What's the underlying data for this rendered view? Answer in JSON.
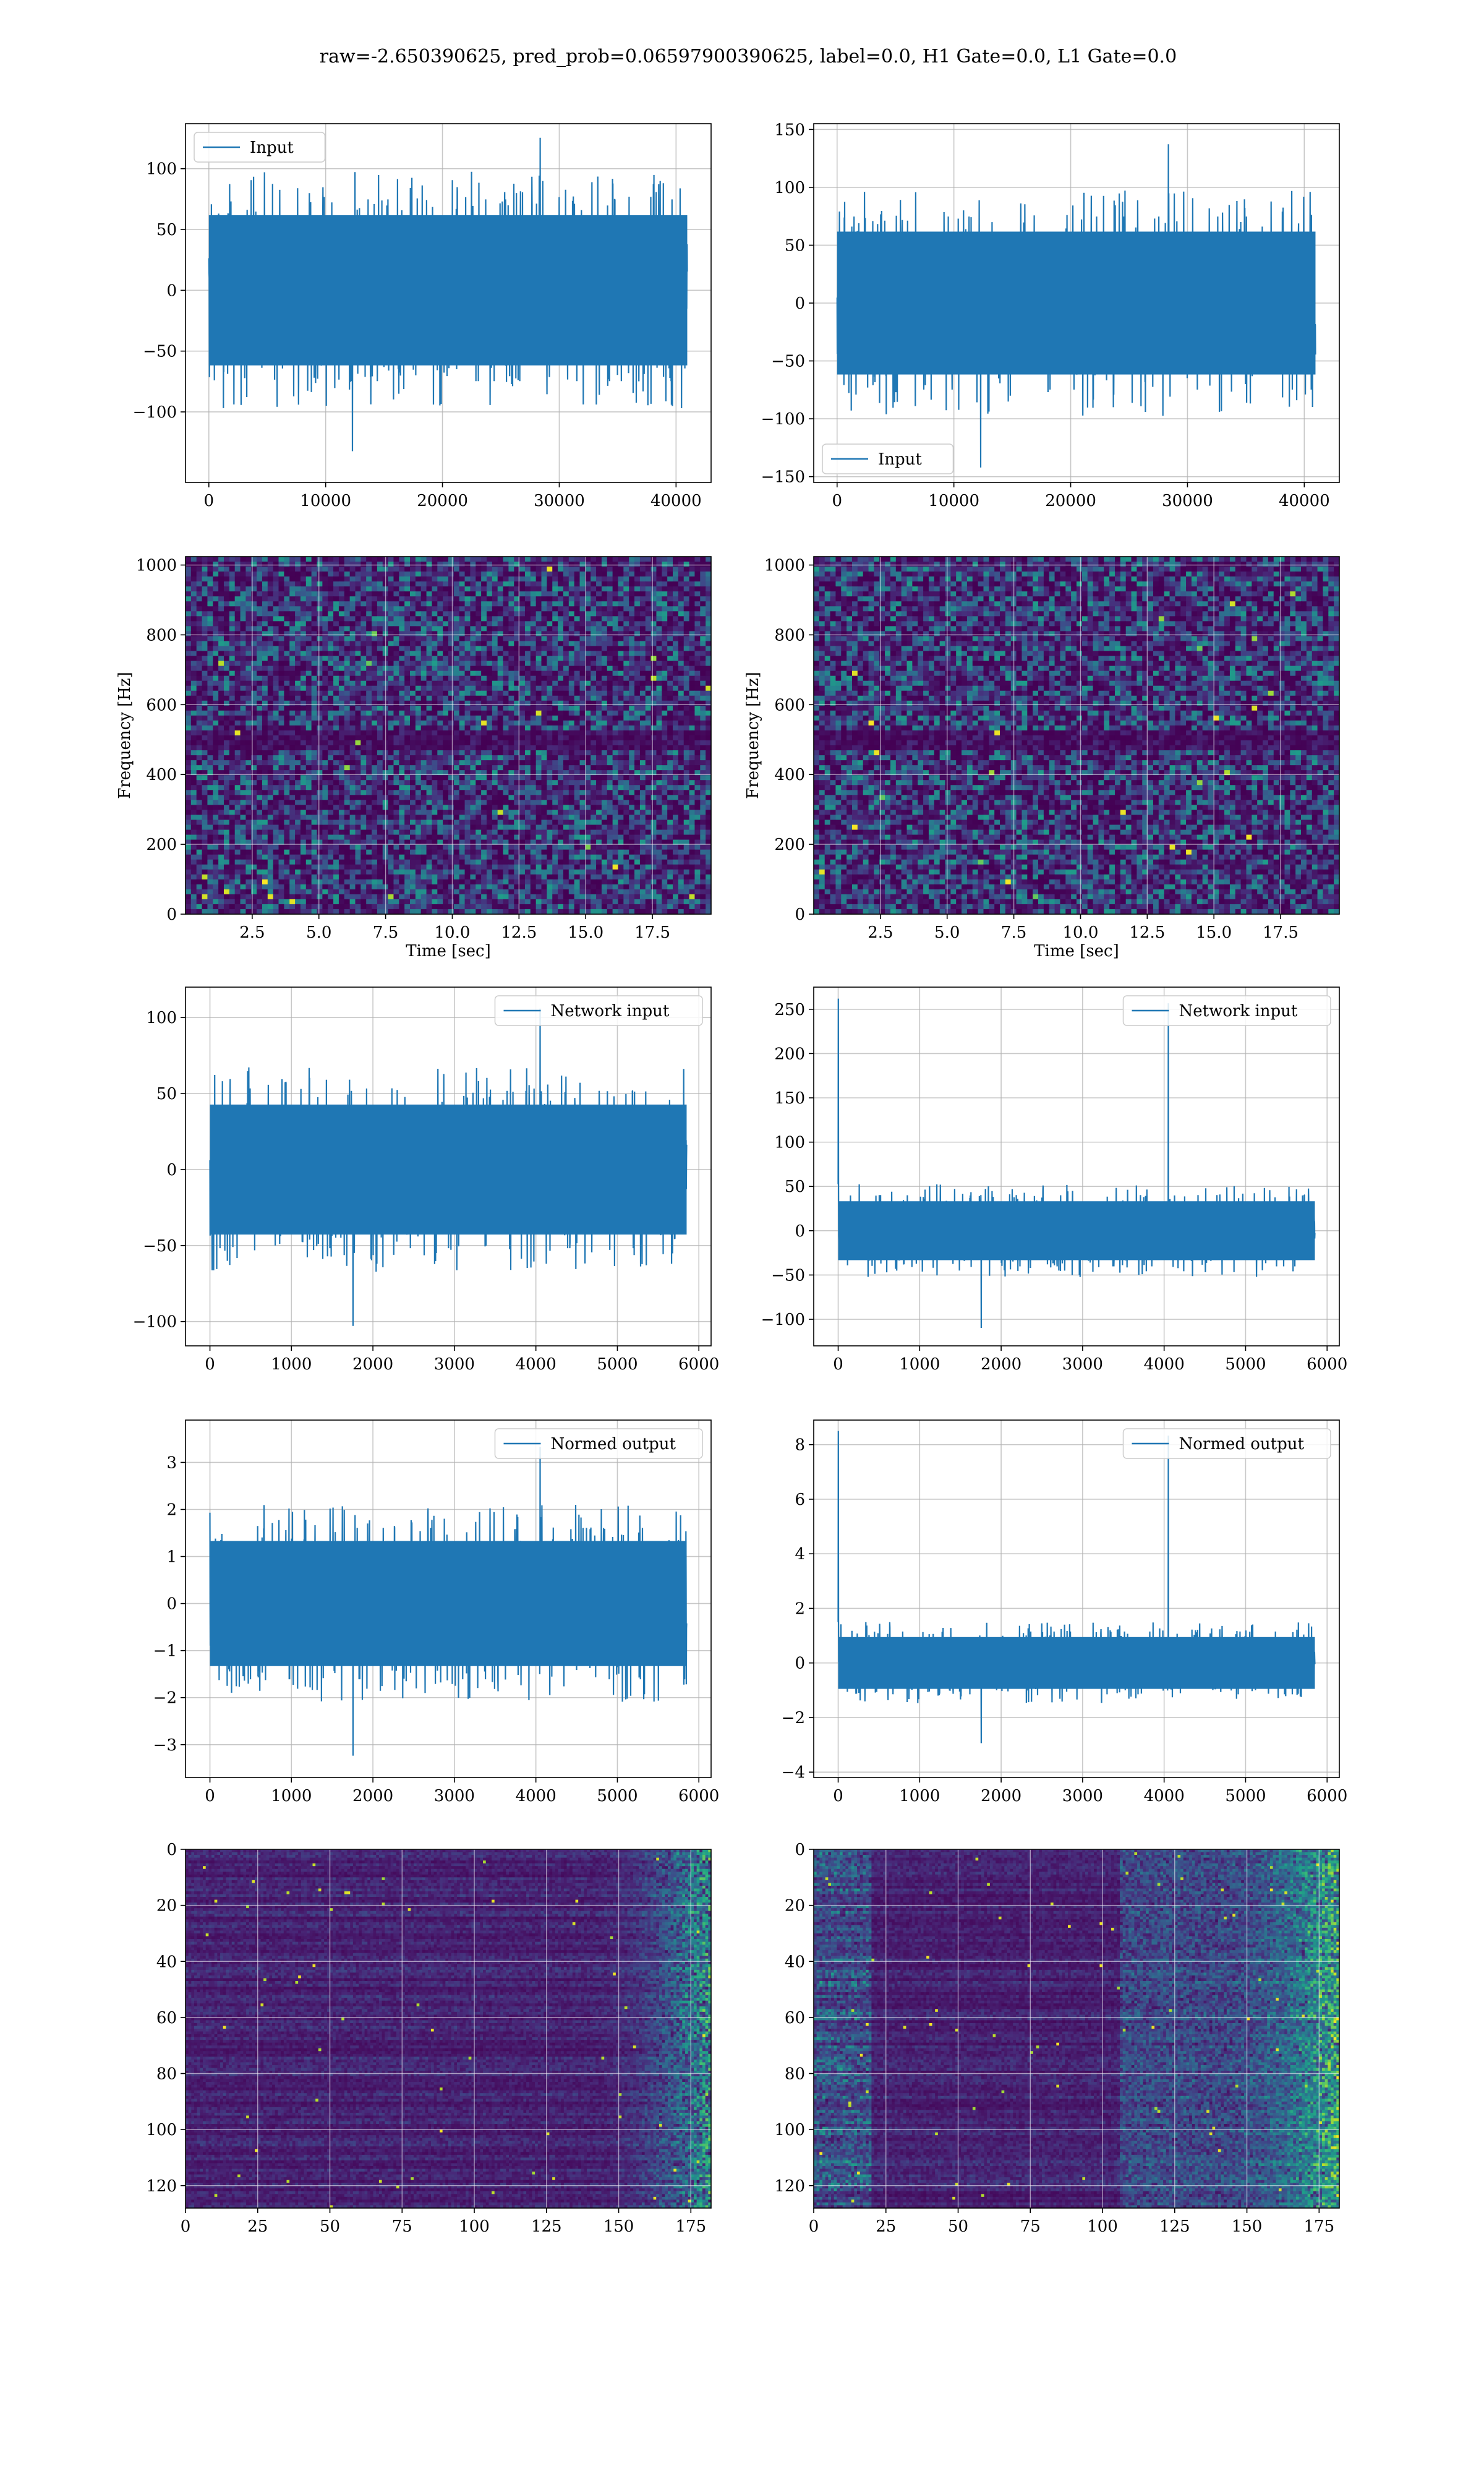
{
  "figure": {
    "suptitle": "raw=-2.650390625, pred_prob=0.06597900390625, label=0.0, H1 Gate=0.0, L1 Gate=0.0"
  },
  "colors": {
    "series": "#1f77b4",
    "grid": "#b0b0b0",
    "viridis_low": "#440154",
    "viridis_mid": "#21918c",
    "viridis_high": "#fde725"
  },
  "chart_data": [
    {
      "id": "r1c1",
      "type": "line",
      "row": 1,
      "col": 1,
      "series": [
        {
          "name": "Input",
          "x_range": [
            0,
            40960
          ],
          "amplitude": 65,
          "spike_max": 128,
          "spike_min": -135
        }
      ],
      "legend": "upper left",
      "xlim": [
        -2000,
        43000
      ],
      "ylim": [
        -158,
        137
      ],
      "xticks": [
        0,
        10000,
        20000,
        30000,
        40000
      ],
      "xtick_labels": [
        "0",
        "10000",
        "20000",
        "30000",
        "40000"
      ],
      "yticks": [
        -100,
        -50,
        0,
        50,
        100
      ],
      "ytick_labels": [
        "−100",
        "−50",
        "0",
        "50",
        "100"
      ],
      "grid": true,
      "xlabel": "",
      "ylabel": ""
    },
    {
      "id": "r1c2",
      "type": "line",
      "row": 1,
      "col": 2,
      "series": [
        {
          "name": "Input",
          "x_range": [
            0,
            40960
          ],
          "amplitude": 65,
          "spike_max": 140,
          "spike_min": -145
        }
      ],
      "legend": "lower left",
      "xlim": [
        -2000,
        43000
      ],
      "ylim": [
        -155,
        155
      ],
      "xticks": [
        0,
        10000,
        20000,
        30000,
        40000
      ],
      "xtick_labels": [
        "0",
        "10000",
        "20000",
        "30000",
        "40000"
      ],
      "yticks": [
        -150,
        -100,
        -50,
        0,
        50,
        100,
        150
      ],
      "ytick_labels": [
        "−150",
        "−100",
        "−50",
        "0",
        "50",
        "100",
        "150"
      ],
      "grid": true,
      "xlabel": "",
      "ylabel": ""
    },
    {
      "id": "r2c1",
      "type": "heatmap",
      "row": 2,
      "col": 1,
      "xlim": [
        0,
        19.7
      ],
      "ylim": [
        0,
        1024
      ],
      "xticks": [
        2.5,
        5.0,
        7.5,
        10.0,
        12.5,
        15.0,
        17.5
      ],
      "xtick_labels": [
        "2.5",
        "5.0",
        "7.5",
        "10.0",
        "12.5",
        "15.0",
        "17.5"
      ],
      "yticks": [
        0,
        200,
        400,
        600,
        800,
        1000
      ],
      "ytick_labels": [
        "0",
        "200",
        "400",
        "600",
        "800",
        "1000"
      ],
      "grid": true,
      "xlabel": "Time [sec]",
      "ylabel": "Frequency [Hz]",
      "colormap": "viridis",
      "dark_band_hz": [
        470,
        530
      ]
    },
    {
      "id": "r2c2",
      "type": "heatmap",
      "row": 2,
      "col": 2,
      "xlim": [
        0,
        19.7
      ],
      "ylim": [
        0,
        1024
      ],
      "xticks": [
        2.5,
        5.0,
        7.5,
        10.0,
        12.5,
        15.0,
        17.5
      ],
      "xtick_labels": [
        "2.5",
        "5.0",
        "7.5",
        "10.0",
        "12.5",
        "15.0",
        "17.5"
      ],
      "yticks": [
        0,
        200,
        400,
        600,
        800,
        1000
      ],
      "ytick_labels": [
        "0",
        "200",
        "400",
        "600",
        "800",
        "1000"
      ],
      "grid": true,
      "xlabel": "Time [sec]",
      "ylabel": "Frequency [Hz]",
      "colormap": "viridis",
      "dark_band_hz": [
        470,
        530
      ]
    },
    {
      "id": "r3c1",
      "type": "line",
      "row": 3,
      "col": 1,
      "series": [
        {
          "name": "Network input",
          "x_range": [
            0,
            5850
          ],
          "amplitude": 45,
          "spike_max": 108,
          "spike_min": -105
        }
      ],
      "legend": "upper right",
      "xlim": [
        -300,
        6150
      ],
      "ylim": [
        -116,
        120
      ],
      "xticks": [
        0,
        1000,
        2000,
        3000,
        4000,
        5000,
        6000
      ],
      "xtick_labels": [
        "0",
        "1000",
        "2000",
        "3000",
        "4000",
        "5000",
        "6000"
      ],
      "yticks": [
        -100,
        -50,
        0,
        50,
        100
      ],
      "ytick_labels": [
        "−100",
        "−50",
        "0",
        "50",
        "100"
      ],
      "grid": true,
      "xlabel": "",
      "ylabel": ""
    },
    {
      "id": "r3c2",
      "type": "line",
      "row": 3,
      "col": 2,
      "series": [
        {
          "name": "Network input",
          "x_range": [
            0,
            5850
          ],
          "amplitude": 35,
          "spike_max": 262,
          "spike_min": -112
        }
      ],
      "legend": "upper right",
      "xlim": [
        -300,
        6150
      ],
      "ylim": [
        -130,
        275
      ],
      "xticks": [
        0,
        1000,
        2000,
        3000,
        4000,
        5000,
        6000
      ],
      "xtick_labels": [
        "0",
        "1000",
        "2000",
        "3000",
        "4000",
        "5000",
        "6000"
      ],
      "yticks": [
        -100,
        -50,
        0,
        50,
        100,
        150,
        200,
        250
      ],
      "ytick_labels": [
        "−100",
        "−50",
        "0",
        "50",
        "100",
        "150",
        "200",
        "250"
      ],
      "grid": true,
      "xlabel": "",
      "ylabel": ""
    },
    {
      "id": "r4c1",
      "type": "line",
      "row": 4,
      "col": 1,
      "series": [
        {
          "name": "Normed output",
          "x_range": [
            0,
            5850
          ],
          "amplitude": 1.4,
          "spike_max": 3.4,
          "spike_min": -3.3
        }
      ],
      "legend": "upper right",
      "xlim": [
        -300,
        6150
      ],
      "ylim": [
        -3.7,
        3.9
      ],
      "xticks": [
        0,
        1000,
        2000,
        3000,
        4000,
        5000,
        6000
      ],
      "xtick_labels": [
        "0",
        "1000",
        "2000",
        "3000",
        "4000",
        "5000",
        "6000"
      ],
      "yticks": [
        -3,
        -2,
        -1,
        0,
        1,
        2,
        3
      ],
      "ytick_labels": [
        "−3",
        "−2",
        "−1",
        "0",
        "1",
        "2",
        "3"
      ],
      "grid": true,
      "xlabel": "",
      "ylabel": ""
    },
    {
      "id": "r4c2",
      "type": "line",
      "row": 4,
      "col": 2,
      "series": [
        {
          "name": "Normed output",
          "x_range": [
            0,
            5850
          ],
          "amplitude": 1.0,
          "spike_max": 8.5,
          "spike_min": -3.0
        }
      ],
      "legend": "upper right",
      "xlim": [
        -300,
        6150
      ],
      "ylim": [
        -4.2,
        8.9
      ],
      "xticks": [
        0,
        1000,
        2000,
        3000,
        4000,
        5000,
        6000
      ],
      "xtick_labels": [
        "0",
        "1000",
        "2000",
        "3000",
        "4000",
        "5000",
        "6000"
      ],
      "yticks": [
        -4,
        -2,
        0,
        2,
        4,
        6,
        8
      ],
      "ytick_labels": [
        "−4",
        "−2",
        "0",
        "2",
        "4",
        "6",
        "8"
      ],
      "grid": true,
      "xlabel": "",
      "ylabel": ""
    },
    {
      "id": "r5c1",
      "type": "heatmap",
      "row": 5,
      "col": 1,
      "xlim": [
        0,
        182
      ],
      "ylim": [
        128,
        0
      ],
      "xticks": [
        0,
        25,
        50,
        75,
        100,
        125,
        150,
        175
      ],
      "xtick_labels": [
        "0",
        "25",
        "50",
        "75",
        "100",
        "125",
        "150",
        "175"
      ],
      "yticks": [
        0,
        20,
        40,
        60,
        80,
        100,
        120
      ],
      "ytick_labels": [
        "0",
        "20",
        "40",
        "60",
        "80",
        "100",
        "120"
      ],
      "grid": true,
      "xlabel": "",
      "ylabel": "",
      "colormap": "viridis"
    },
    {
      "id": "r5c2",
      "type": "heatmap",
      "row": 5,
      "col": 2,
      "xlim": [
        0,
        182
      ],
      "ylim": [
        128,
        0
      ],
      "xticks": [
        0,
        25,
        50,
        75,
        100,
        125,
        150,
        175
      ],
      "xtick_labels": [
        "0",
        "25",
        "50",
        "75",
        "100",
        "125",
        "150",
        "175"
      ],
      "yticks": [
        0,
        20,
        40,
        60,
        80,
        100,
        120
      ],
      "ytick_labels": [
        "0",
        "20",
        "40",
        "60",
        "80",
        "100",
        "120"
      ],
      "grid": true,
      "xlabel": "",
      "ylabel": "",
      "colormap": "viridis"
    }
  ]
}
